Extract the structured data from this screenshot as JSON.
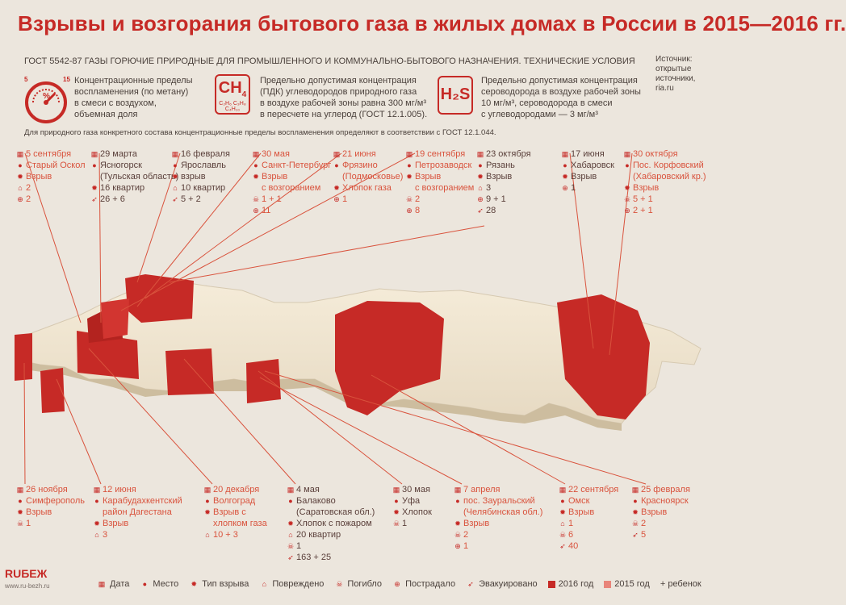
{
  "title": "Взрывы и возгорания бытового газа в жилых домах в России в 2015—2016 гг.",
  "gost": "ГОСТ 5542-87 ГАЗЫ ГОРЮЧИЕ ПРИРОДНЫЕ ДЛЯ ПРОМЫШЛЕННОГО И КОММУНАЛЬНО-БЫТОВОГО НАЗНАЧЕНИЯ. ТЕХНИЧЕСКИЕ УСЛОВИЯ",
  "sources": [
    "Источник:",
    "открытые",
    "источники,",
    "ria.ru"
  ],
  "gauge": {
    "min": "5",
    "max": "15",
    "unit": "%"
  },
  "info": {
    "methane": [
      "Концентрационные пределы",
      "воспламенения (по метану)",
      "в смеси с воздухом,",
      "объемная доля"
    ],
    "ch4_icon": "CH",
    "ch4_sub": "4",
    "ch4_formula": "C₂H₆ C₃H₈ C₄H₁₀",
    "ch4_text": [
      "Предельно допустимая концентрация",
      "(ПДК) углеводородов природного газа",
      "в воздухе рабочей зоны равна 300 мг/м³",
      "в пересчете на углерод (ГОСТ 12.1.005)."
    ],
    "h2s_icon": "H₂S",
    "h2s_text": [
      "Предельно допустимая концентрация",
      "сероводорода в воздухе рабочей зоны",
      "10 мг/м³, сероводорода в смеси",
      "с углеводородами — 3 мг/м³"
    ]
  },
  "footnote": "Для природного газа конкретного состава концентрационные пределы воспламенения определяют в соответствии с ГОСТ 12.1.044.",
  "colors": {
    "accent": "#c62a26",
    "y2016": "#c62a26",
    "y2015": "#d9533d",
    "map": "#f3ead7"
  },
  "events_top": [
    {
      "year": "2015",
      "date": "5 сентября",
      "place": [
        "Старый Оскол"
      ],
      "type": [
        "Взрыв"
      ],
      "damaged": "2",
      "injured": "2"
    },
    {
      "year": "2016",
      "date": "29 марта",
      "place": [
        "Ясногорск",
        "(Тульская область)"
      ],
      "type": [
        "16 квартир"
      ],
      "evacuated": "26 + 6"
    },
    {
      "year": "2016",
      "date": "16 февраля",
      "place": [
        "Ярославль"
      ],
      "type": [
        "взрыв"
      ],
      "damaged": "10 квартир",
      "evacuated": "5 + 2"
    },
    {
      "year": "2015",
      "date": "30 мая",
      "place": [
        "Санкт-Петербург"
      ],
      "type": [
        "Взрыв",
        "с возгоранием"
      ],
      "died": "1 + 1",
      "injured": "11"
    },
    {
      "year": "2015",
      "date": "21 июня",
      "place": [
        "Фрязино",
        "(Подмосковье)"
      ],
      "type": [
        "Хлопок газа"
      ],
      "injured": "1"
    },
    {
      "year": "2015",
      "date": "19 сентября",
      "place": [
        "Петрозаводск"
      ],
      "type": [
        "Взрыв",
        "с возгоранием"
      ],
      "died": "2",
      "injured": "8"
    },
    {
      "year": "2016",
      "date": "23 октября",
      "place": [
        "Рязань"
      ],
      "type": [
        "Взрыв"
      ],
      "damaged": "3",
      "injured": "9 + 1",
      "evacuated": "28"
    },
    {
      "year": "2016",
      "date": "17 июня",
      "place": [
        "Хабаровск"
      ],
      "type": [
        "Взрыв"
      ],
      "injured": "1"
    },
    {
      "year": "2015",
      "date": "30 октября",
      "place": [
        "Пос. Корфовский",
        "(Хабаровский кр.)"
      ],
      "type": [
        "Взрыв"
      ],
      "died": "5 + 1",
      "injured": "2 + 1"
    }
  ],
  "events_bottom": [
    {
      "year": "2015",
      "date": "26 ноября",
      "place": [
        "Симферополь"
      ],
      "type": [
        "Взрыв"
      ],
      "died": "1"
    },
    {
      "year": "2015",
      "date": "12 июня",
      "place": [
        "Карабудахкентский",
        "район Дагестана"
      ],
      "type": [
        "Взрыв"
      ],
      "damaged": "3"
    },
    {
      "year": "2015",
      "date": "20 декабря",
      "place": [
        "Волгоград"
      ],
      "type": [
        "Взрыв с",
        "хлопком газа"
      ],
      "damaged": "10 + 3"
    },
    {
      "year": "2016",
      "date": "4 мая",
      "place": [
        "Балаково",
        "(Саратовская обл.)"
      ],
      "type": [
        "Хлопок  с пожаром"
      ],
      "damaged": "20 квартир",
      "died": "1",
      "evacuated": "163 + 25"
    },
    {
      "year": "2016",
      "date": "30 мая",
      "place": [
        "Уфа"
      ],
      "type": [
        "Хлопок"
      ],
      "died": "1"
    },
    {
      "year": "2015",
      "date": "7 апреля",
      "place": [
        "пос. Зауральский",
        "(Челябинская обл.)"
      ],
      "type": [
        "Взрыв"
      ],
      "died": "2",
      "injured": "1"
    },
    {
      "year": "2015",
      "date": "22 сентября",
      "place": [
        "Омск"
      ],
      "type": [
        "Взрыв"
      ],
      "damaged": "1",
      "died": "6",
      "evacuated": "40"
    },
    {
      "year": "2015",
      "date": "25 февраля",
      "place": [
        "Красноярск"
      ],
      "type": [
        "Взрыв"
      ],
      "died": "2",
      "evacuated": "5"
    }
  ],
  "legend": {
    "date": "Дата",
    "place": "Место",
    "type": "Тип взрыва",
    "damaged": "Повреждено",
    "died": "Погибло",
    "injured": "Пострадало",
    "evacuated": "Эвакуировано",
    "y2016": "2016 год",
    "y2015": "2015 год",
    "child": "+ ребенок"
  },
  "logo": {
    "name": "RUБЕЖ",
    "url": "www.ru-bezh.ru"
  }
}
